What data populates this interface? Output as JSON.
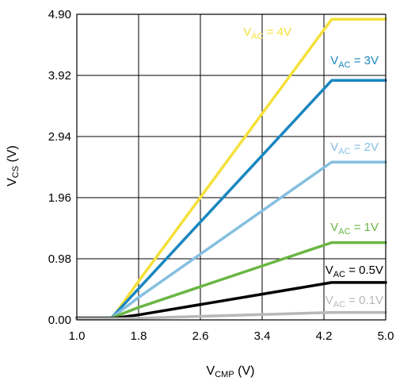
{
  "chart_data": {
    "type": "line",
    "xlabel": {
      "main": "V",
      "sub": "CMP",
      "unit": " (V)"
    },
    "ylabel": {
      "main": "V",
      "sub": "CS",
      "unit": " (V)"
    },
    "xlim": [
      1.0,
      5.0
    ],
    "ylim": [
      0.0,
      4.9
    ],
    "xticks": [
      "1.0",
      "1.8",
      "2.6",
      "3.4",
      "4.2",
      "5.0"
    ],
    "yticks": [
      "0.00",
      "0.98",
      "1.96",
      "2.94",
      "3.92",
      "4.90"
    ],
    "grid": true,
    "series": [
      {
        "name_main": "V",
        "name_sub": "AC",
        "name_rest": " = 4V",
        "color": "#f5e03a",
        "points": [
          [
            1.0,
            0.03
          ],
          [
            1.45,
            0.03
          ],
          [
            1.5,
            0.1
          ],
          [
            1.8,
            0.62
          ],
          [
            4.3,
            4.82
          ],
          [
            5.0,
            4.82
          ]
        ]
      },
      {
        "name_main": "V",
        "name_sub": "AC",
        "name_rest": " = 3V",
        "color": "#1a86c0",
        "points": [
          [
            1.0,
            0.03
          ],
          [
            1.45,
            0.03
          ],
          [
            1.5,
            0.1
          ],
          [
            1.8,
            0.5
          ],
          [
            4.3,
            3.84
          ],
          [
            5.0,
            3.84
          ]
        ]
      },
      {
        "name_main": "V",
        "name_sub": "AC",
        "name_rest": " = 2V",
        "color": "#86bfdf",
        "points": [
          [
            1.0,
            0.03
          ],
          [
            1.45,
            0.03
          ],
          [
            1.5,
            0.08
          ],
          [
            1.8,
            0.36
          ],
          [
            4.3,
            2.53
          ],
          [
            5.0,
            2.53
          ]
        ]
      },
      {
        "name_main": "V",
        "name_sub": "AC",
        "name_rest": " = 1V",
        "color": "#6ab643",
        "points": [
          [
            1.0,
            0.03
          ],
          [
            1.45,
            0.03
          ],
          [
            1.55,
            0.08
          ],
          [
            1.8,
            0.2
          ],
          [
            4.3,
            1.24
          ],
          [
            5.0,
            1.24
          ]
        ]
      },
      {
        "name_main": "V",
        "name_sub": "AC",
        "name_rest": " = 0.5V",
        "color": "#000000",
        "points": [
          [
            1.0,
            0.03
          ],
          [
            1.5,
            0.03
          ],
          [
            1.8,
            0.08
          ],
          [
            4.3,
            0.6
          ],
          [
            5.0,
            0.6
          ]
        ]
      },
      {
        "name_main": "V",
        "name_sub": "AC",
        "name_rest": " = 0.1V",
        "color": "#b8b8b8",
        "points": [
          [
            1.0,
            0.02
          ],
          [
            1.6,
            0.02
          ],
          [
            4.3,
            0.12
          ],
          [
            5.0,
            0.12
          ]
        ]
      }
    ]
  }
}
